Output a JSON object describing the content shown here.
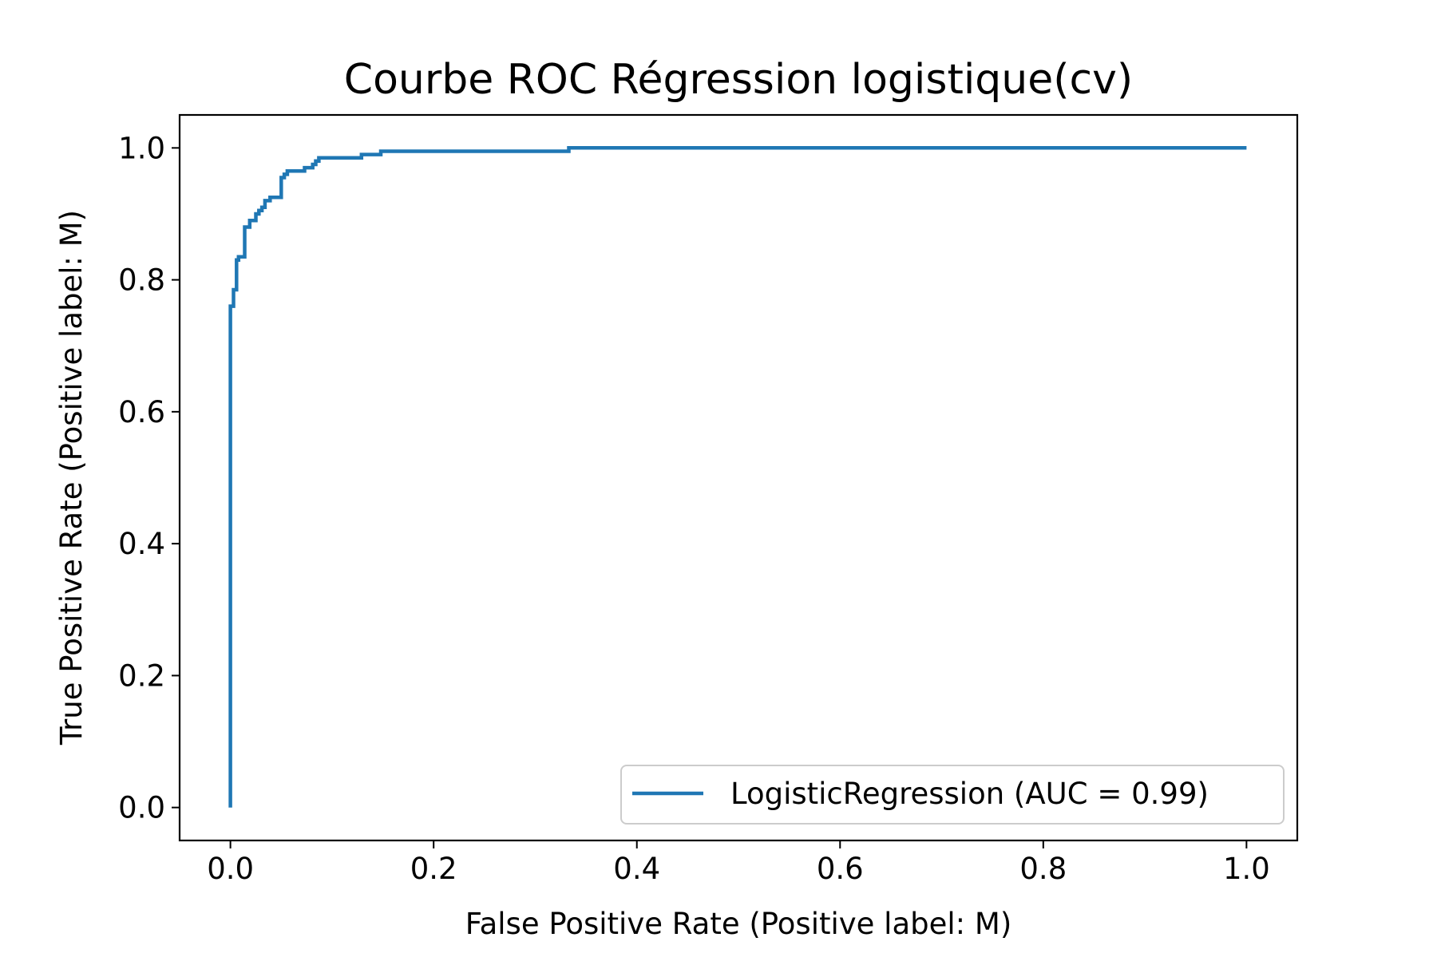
{
  "chart_data": {
    "type": "line",
    "title": "Courbe ROC Régression logistique(cv)",
    "xlabel": "False Positive Rate (Positive label: M)",
    "ylabel": "True Positive Rate (Positive label: M)",
    "xlim": [
      -0.05,
      1.05
    ],
    "ylim": [
      -0.05,
      1.05
    ],
    "xticks": [
      0.0,
      0.2,
      0.4,
      0.6,
      0.8,
      1.0
    ],
    "xtick_labels": [
      "0.0",
      "0.2",
      "0.4",
      "0.6",
      "0.8",
      "1.0"
    ],
    "yticks": [
      0.0,
      0.2,
      0.4,
      0.6,
      0.8,
      1.0
    ],
    "ytick_labels": [
      "0.0",
      "0.2",
      "0.4",
      "0.6",
      "0.8",
      "1.0"
    ],
    "grid": false,
    "legend_position": "lower-right",
    "series": [
      {
        "name": "LogisticRegression (AUC = 0.99)",
        "color": "#1f77b4",
        "step": true,
        "x": [
          0.0,
          0.0,
          0.003,
          0.003,
          0.006,
          0.006,
          0.008,
          0.008,
          0.014,
          0.014,
          0.019,
          0.019,
          0.025,
          0.025,
          0.028,
          0.028,
          0.031,
          0.031,
          0.034,
          0.034,
          0.039,
          0.039,
          0.05,
          0.05,
          0.053,
          0.053,
          0.056,
          0.056,
          0.073,
          0.073,
          0.081,
          0.081,
          0.084,
          0.084,
          0.087,
          0.087,
          0.129,
          0.129,
          0.148,
          0.148,
          0.333,
          0.333,
          1.0
        ],
        "y": [
          0.0,
          0.76,
          0.76,
          0.785,
          0.785,
          0.83,
          0.83,
          0.835,
          0.835,
          0.88,
          0.88,
          0.89,
          0.89,
          0.9,
          0.9,
          0.905,
          0.905,
          0.91,
          0.91,
          0.92,
          0.92,
          0.925,
          0.925,
          0.955,
          0.955,
          0.96,
          0.96,
          0.965,
          0.965,
          0.97,
          0.97,
          0.975,
          0.975,
          0.98,
          0.98,
          0.985,
          0.985,
          0.99,
          0.99,
          0.995,
          0.995,
          1.0,
          1.0
        ]
      }
    ]
  }
}
